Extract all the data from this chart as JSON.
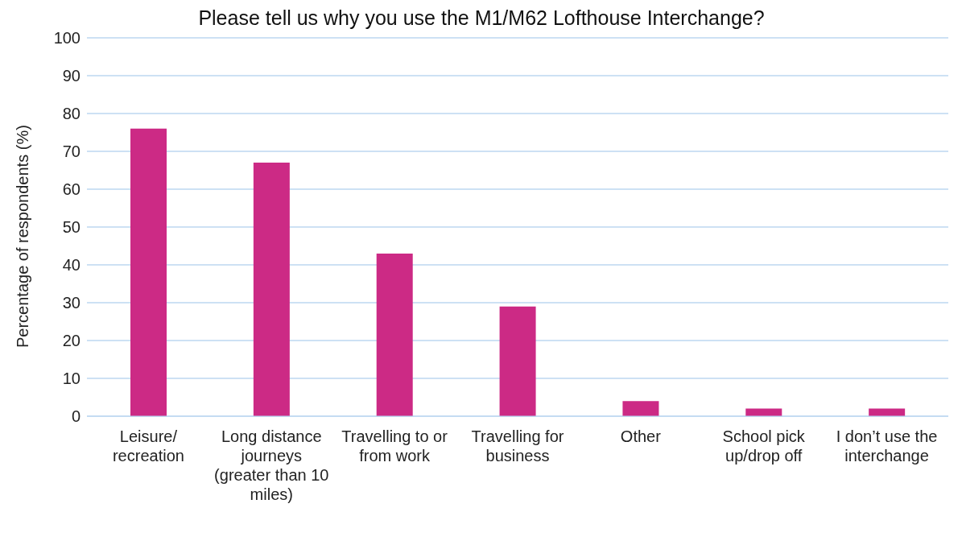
{
  "chart_data": {
    "type": "bar",
    "title": "Please tell us why you use the M1/M62 Lofthouse Interchange?",
    "ylabel": "Percentage of respondents (%)",
    "categories": [
      "Leisure/recreation",
      "Long distance journeys (greater than 10 miles)",
      "Travelling to or from work",
      "Travelling for business",
      "Other",
      "School pick up/drop off",
      "I don’t use the interchange"
    ],
    "values": [
      76,
      67,
      43,
      29,
      4,
      2,
      2
    ],
    "color": "#cc2a85",
    "ylim": [
      0,
      100
    ],
    "yticks": [
      0,
      10,
      20,
      30,
      40,
      50,
      60,
      70,
      80,
      90,
      100
    ],
    "grid": "y",
    "legend": false
  }
}
